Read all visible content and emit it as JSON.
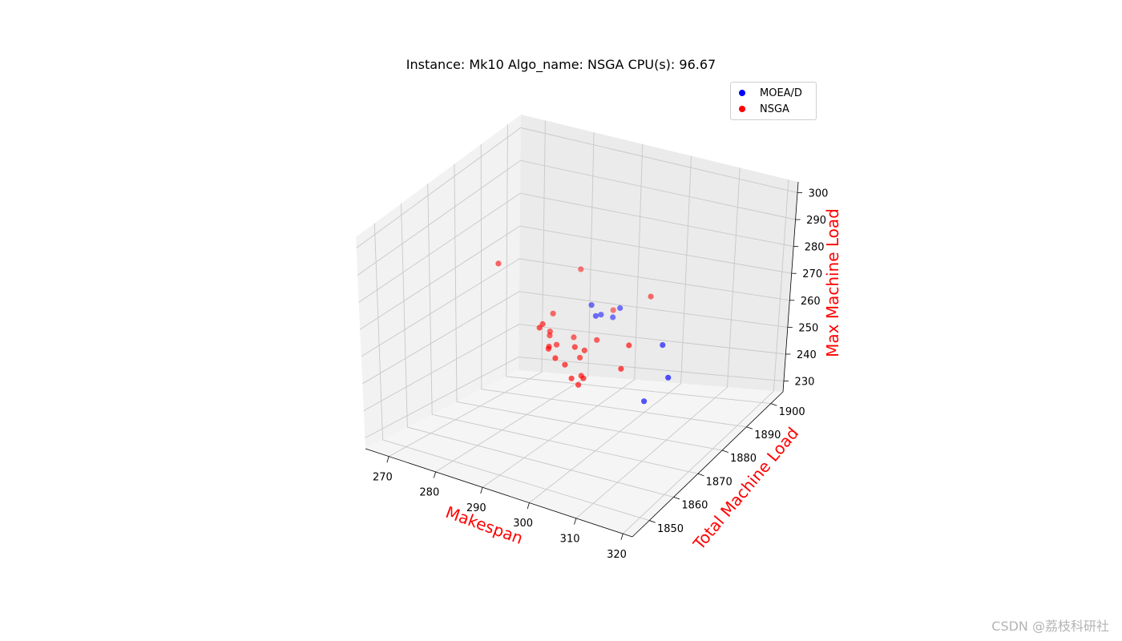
{
  "chart_data": {
    "type": "scatter",
    "projection": "3d",
    "title": "Instance: Mk10 Algo_name: NSGA CPU(s): 96.67",
    "xlabel": "Makespan",
    "ylabel": "Total Machine Load",
    "zlabel": "Max Machine Load",
    "axis_label_color": "#ff0000",
    "xticks": [
      "270",
      "280",
      "290",
      "300",
      "310",
      "320"
    ],
    "yticks": [
      "1850",
      "1860",
      "1870",
      "1880",
      "1890",
      "1900"
    ],
    "zticks": [
      "230",
      "240",
      "250",
      "260",
      "270",
      "280",
      "290",
      "300"
    ],
    "grid": true,
    "legend_position": "top-right",
    "series": [
      {
        "name": "MOEA/D",
        "color": "#0000ff",
        "points": [
          {
            "x": 304,
            "y": 1882,
            "z": 236
          },
          {
            "x": 305,
            "y": 1887,
            "z": 252
          },
          {
            "x": 310,
            "y": 1880,
            "z": 247
          },
          {
            "x": 283,
            "y": 1900,
            "z": 252
          },
          {
            "x": 285,
            "y": 1898,
            "z": 250
          },
          {
            "x": 284,
            "y": 1902,
            "z": 248
          },
          {
            "x": 286,
            "y": 1903,
            "z": 247
          },
          {
            "x": 288,
            "y": 1902,
            "z": 251
          }
        ]
      },
      {
        "name": "NSGA",
        "color": "#ff0000",
        "points": [
          {
            "x": 297,
            "y": 1897,
            "z": 260
          },
          {
            "x": 279,
            "y": 1903,
            "z": 261
          },
          {
            "x": 285,
            "y": 1905,
            "z": 248
          },
          {
            "x": 300,
            "y": 1883,
            "z": 253
          },
          {
            "x": 300,
            "y": 1880,
            "z": 247
          },
          {
            "x": 267,
            "y": 1893,
            "z": 265
          },
          {
            "x": 277,
            "y": 1896,
            "z": 250
          },
          {
            "x": 278,
            "y": 1890,
            "z": 250
          },
          {
            "x": 278,
            "y": 1893,
            "z": 246
          },
          {
            "x": 279,
            "y": 1891,
            "z": 246
          },
          {
            "x": 280,
            "y": 1885,
            "z": 252
          },
          {
            "x": 281,
            "y": 1887,
            "z": 245
          },
          {
            "x": 282,
            "y": 1895,
            "z": 244
          },
          {
            "x": 281,
            "y": 1890,
            "z": 244
          },
          {
            "x": 283,
            "y": 1883,
            "z": 247
          },
          {
            "x": 285,
            "y": 1882,
            "z": 245
          },
          {
            "x": 286,
            "y": 1884,
            "z": 242
          },
          {
            "x": 286,
            "y": 1890,
            "z": 241
          },
          {
            "x": 287,
            "y": 1886,
            "z": 247
          },
          {
            "x": 288,
            "y": 1888,
            "z": 245
          },
          {
            "x": 289,
            "y": 1891,
            "z": 247
          },
          {
            "x": 290,
            "y": 1883,
            "z": 240
          },
          {
            "x": 289,
            "y": 1881,
            "z": 240
          },
          {
            "x": 291,
            "y": 1880,
            "z": 239
          },
          {
            "x": 291,
            "y": 1882,
            "z": 240
          }
        ]
      }
    ]
  },
  "watermark": "CSDN @荔枝科研社"
}
